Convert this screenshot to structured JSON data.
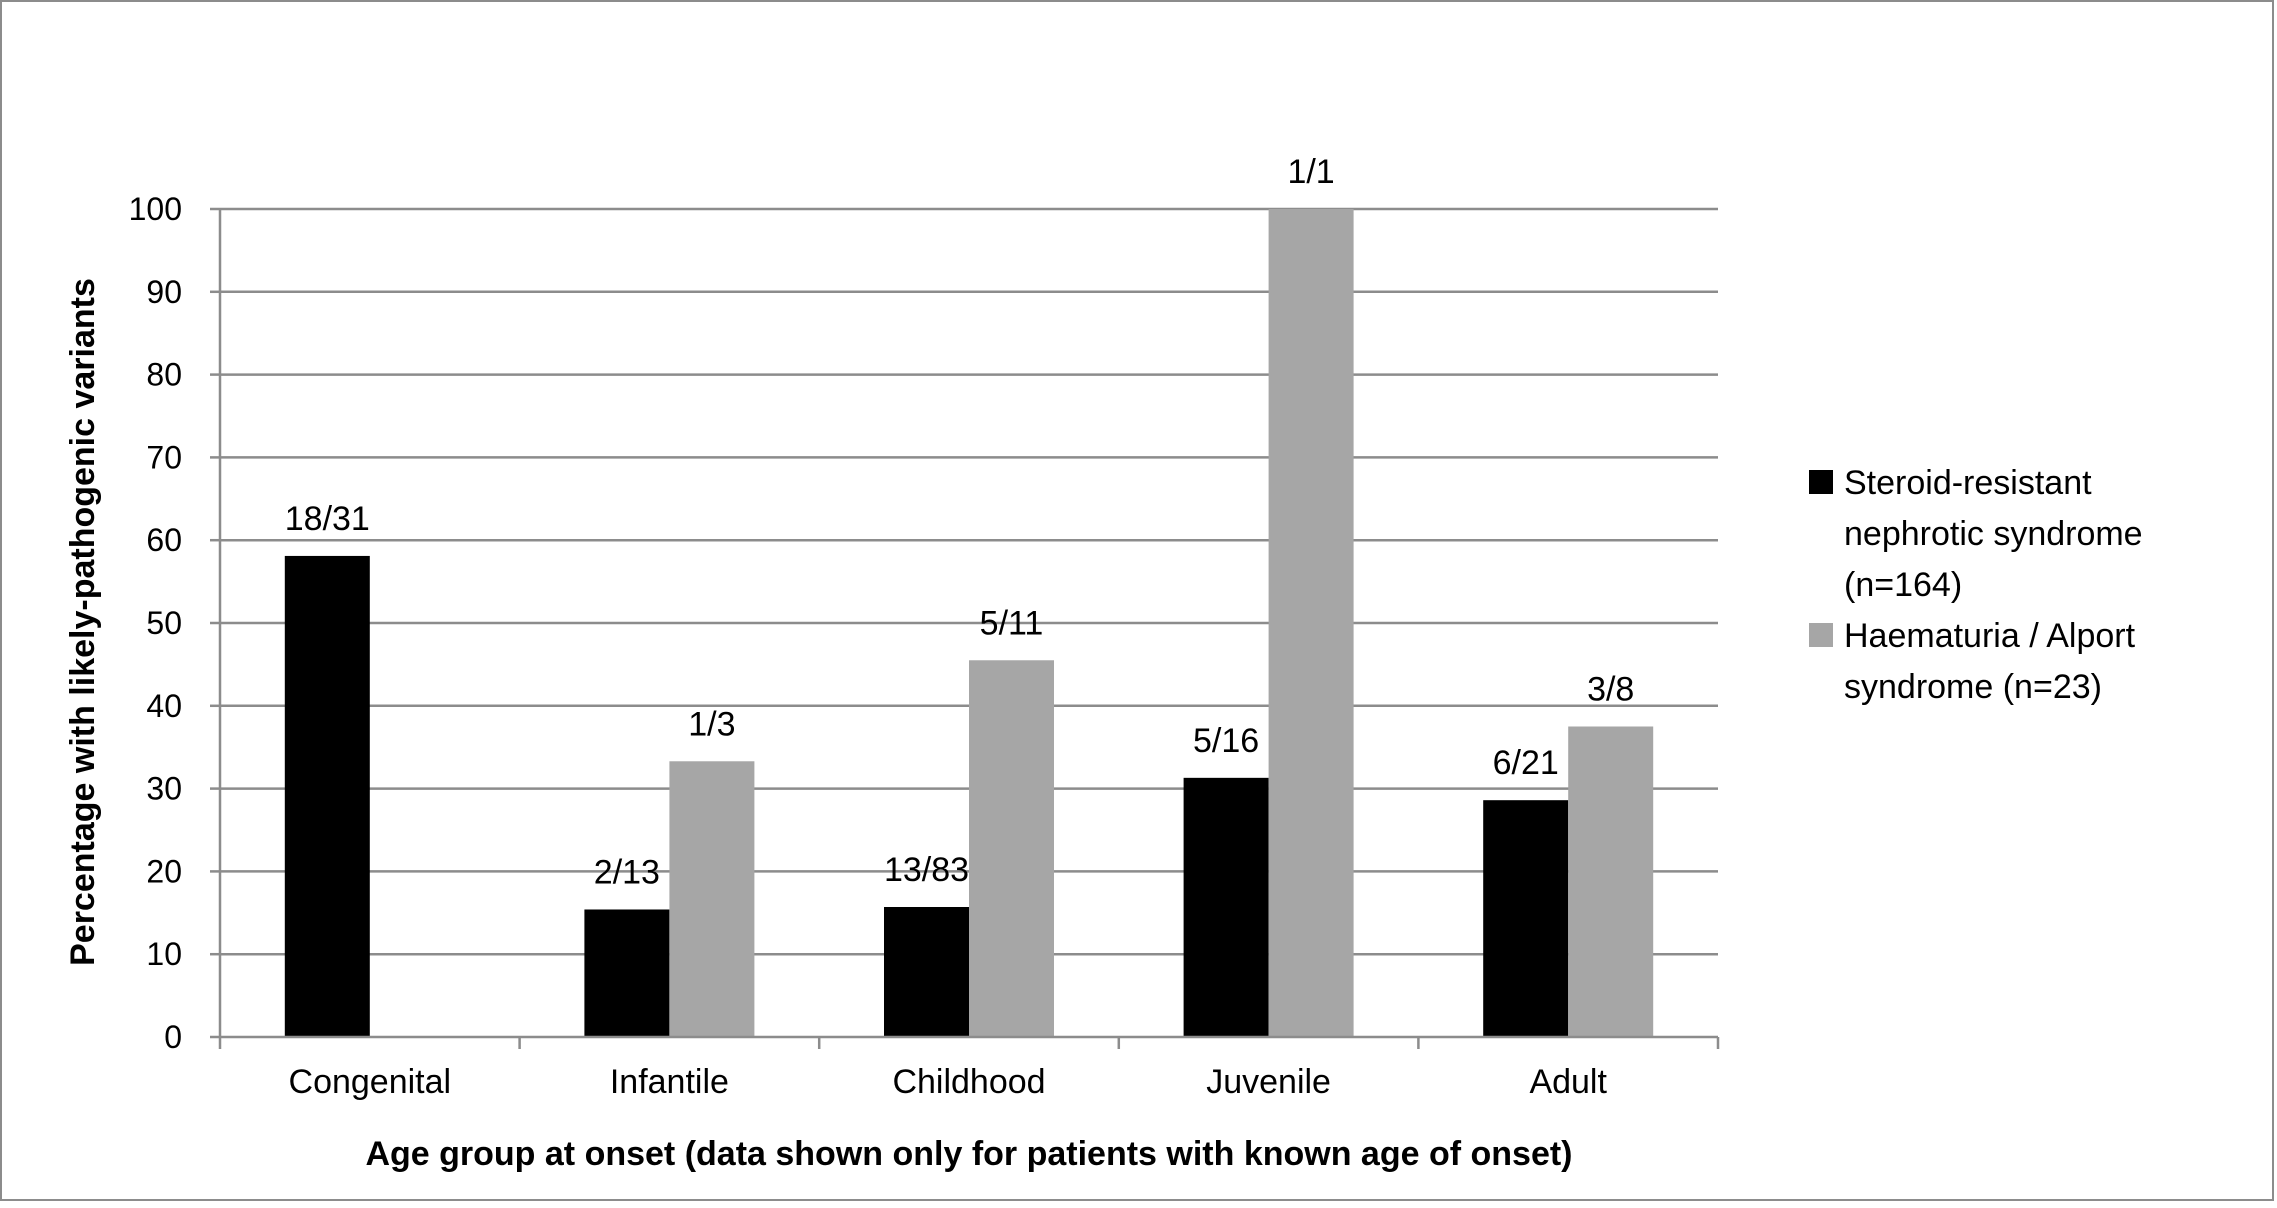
{
  "chart_data": {
    "type": "bar",
    "categories": [
      "Congenital",
      "Infantile",
      "Childhood",
      "Juvenile",
      "Adult"
    ],
    "series": [
      {
        "name": "Steroid-resistant nephrotic syndrome (n=164)",
        "legend_lines": [
          "Steroid-resistant",
          "nephrotic syndrome",
          "(n=164)"
        ],
        "color": "#000000",
        "values": [
          58.1,
          15.4,
          15.7,
          31.3,
          28.6
        ],
        "data_labels": [
          "18/31",
          "2/13",
          "13/83",
          "5/16",
          "6/21"
        ]
      },
      {
        "name": "Haematuria / Alport syndrome (n=23)",
        "legend_lines": [
          "Haematuria / Alport",
          "syndrome (n=23)"
        ],
        "color": "#a6a6a6",
        "values": [
          null,
          33.3,
          45.5,
          100,
          37.5
        ],
        "data_labels": [
          "",
          "1/3",
          "5/11",
          "1/1",
          "3/8"
        ]
      }
    ],
    "title": "",
    "xlabel": "Age group at onset (data shown only for patients with known age of onset)",
    "ylabel": "Percentage with likely-pathogenic variants",
    "ylim": [
      0,
      100
    ],
    "yticks": [
      "0",
      "10",
      "20",
      "30",
      "40",
      "50",
      "60",
      "70",
      "80",
      "90",
      "100"
    ],
    "grid": true,
    "legend_position": "right",
    "gridline_color": "#8c8c8c"
  }
}
